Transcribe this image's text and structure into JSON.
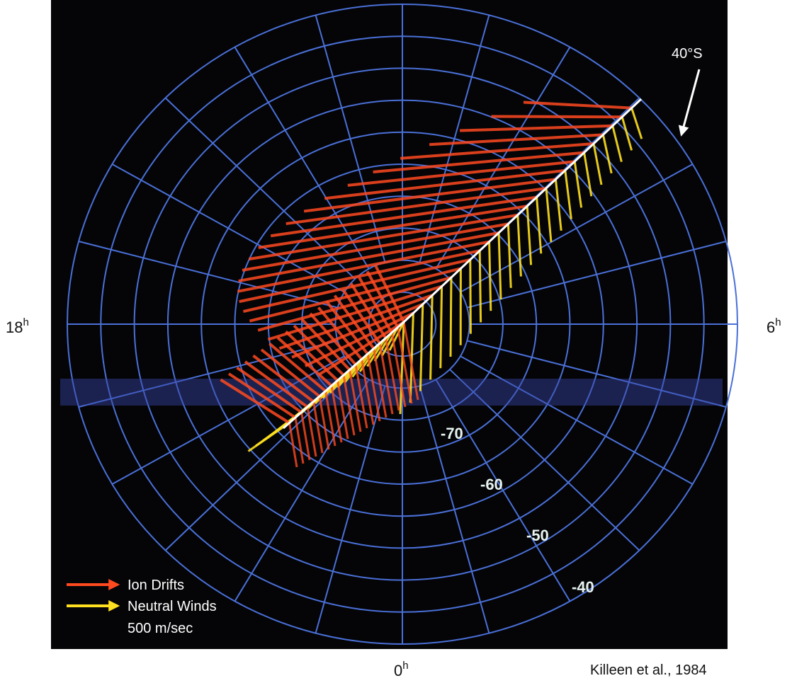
{
  "figure": {
    "hour_labels": [
      {
        "number": "18",
        "unit": "h"
      },
      {
        "number": "6",
        "unit": "h"
      },
      {
        "number": "0",
        "unit": "h"
      }
    ],
    "latitude_marker": "40°S",
    "latitude_labels": [
      "-70",
      "-60",
      "-50",
      "-40"
    ],
    "legend": {
      "ion": "Ion Drifts",
      "neutral": "Neutral Winds",
      "scale": "500 m/sec"
    },
    "credit": "Killeen et al., 1984"
  }
}
